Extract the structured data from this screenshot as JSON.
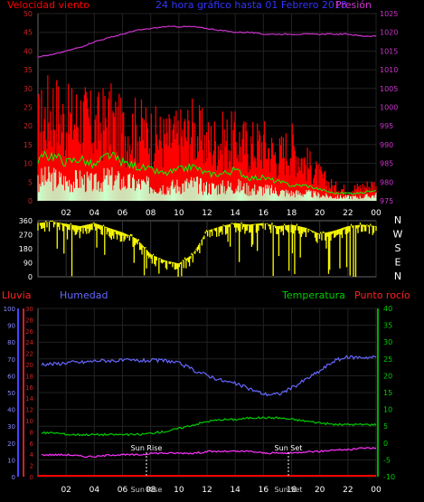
{
  "header": {
    "left": "Velocidad viento",
    "center": "24 hora gráfico hasta  01 Febrero 2018",
    "right": "Presión"
  },
  "mid_labels": [
    "Lluvia",
    "Humedad",
    "Temperatura",
    "Punto rocío"
  ],
  "compass": [
    "N",
    "W",
    "S",
    "E",
    "N"
  ],
  "sun": {
    "rise": "Sun Rise",
    "set": "Sun Set"
  },
  "colors": {
    "wind_gust": "#ff0000",
    "wind_avg": "#00ff00",
    "wind_min": "#ccffcc",
    "pressure": "#cc33cc",
    "direction": "#ffff00",
    "humidity": "#6666ff",
    "temperature": "#00cc00",
    "dewpoint": "#ff33ff",
    "rain": "#ff0000",
    "left_axis": "#cc2222",
    "right_axis_bottom": "#00cc00",
    "axis_text": "#ffffff"
  },
  "chart_data": [
    {
      "type": "area",
      "title": "24 hora gráfico hasta  01 Febrero 2018",
      "x_ticks": [
        "02",
        "04",
        "06",
        "08",
        "10",
        "12",
        "14",
        "16",
        "18",
        "20",
        "22",
        "00"
      ],
      "y_left": {
        "label": "Velocidad viento",
        "ticks": [
          0,
          5,
          10,
          15,
          20,
          25,
          30,
          35,
          40,
          45,
          50
        ],
        "lim": [
          0,
          50
        ]
      },
      "y_right": {
        "label": "Presión",
        "ticks": [
          975,
          980,
          985,
          990,
          995,
          1000,
          1005,
          1010,
          1015,
          1020,
          1025
        ],
        "lim": [
          975,
          1025
        ]
      },
      "x": [
        0,
        1,
        2,
        3,
        4,
        5,
        6,
        7,
        8,
        9,
        10,
        11,
        12,
        13,
        14,
        15,
        16,
        17,
        18,
        19,
        20,
        21,
        22,
        23,
        24
      ],
      "series": [
        {
          "name": "gust",
          "values": [
            27,
            34,
            28,
            31,
            26,
            30,
            25,
            26,
            24,
            22,
            23,
            26,
            21,
            22,
            22,
            20,
            21,
            16,
            20,
            14,
            9,
            5,
            4,
            5,
            6
          ]
        },
        {
          "name": "average",
          "values": [
            11,
            12,
            10,
            11,
            9,
            12,
            10,
            9,
            8,
            7,
            8,
            9,
            7,
            7,
            8,
            6,
            6,
            5,
            4,
            4,
            3,
            2,
            2,
            2,
            3
          ]
        },
        {
          "name": "pressure",
          "values": [
            1013.5,
            1014,
            1015,
            1016,
            1017.5,
            1018.5,
            1019.5,
            1020.5,
            1021,
            1021.5,
            1021.5,
            1021.5,
            1021,
            1020.5,
            1020,
            1020,
            1019.5,
            1019.5,
            1019.5,
            1019.5,
            1019.5,
            1019.5,
            1019.5,
            1019,
            1019
          ]
        }
      ]
    },
    {
      "type": "line",
      "title": "",
      "y_ticks": [
        0,
        90,
        180,
        270,
        360
      ],
      "y_right_labels": [
        "N",
        "W",
        "S",
        "E",
        "N"
      ],
      "x": [
        0,
        1,
        2,
        3,
        4,
        5,
        6,
        7,
        8,
        9,
        10,
        11,
        12,
        13,
        14,
        15,
        16,
        17,
        18,
        19,
        20,
        21,
        22,
        23,
        24
      ],
      "series": [
        {
          "name": "direction",
          "values": [
            320,
            330,
            315,
            300,
            320,
            290,
            260,
            220,
            120,
            80,
            60,
            120,
            270,
            300,
            320,
            310,
            320,
            300,
            310,
            290,
            250,
            270,
            300,
            310,
            300
          ]
        }
      ]
    },
    {
      "type": "line",
      "title": "",
      "x_ticks": [
        "02",
        "04",
        "06",
        "08",
        "10",
        "12",
        "14",
        "16",
        "18",
        "20",
        "22",
        "00"
      ],
      "y_left_rain": {
        "label": "Lluvia",
        "ticks": [
          0,
          2,
          4,
          6,
          8,
          10,
          12,
          14,
          16,
          18,
          20,
          22,
          24,
          26,
          28,
          30
        ]
      },
      "y_left_humidity": {
        "label": "Humedad",
        "ticks": [
          0,
          10,
          20,
          30,
          40,
          50,
          60,
          70,
          80,
          90,
          100
        ]
      },
      "y_right": {
        "label": "Temperatura",
        "ticks": [
          -10,
          -5,
          0,
          5,
          10,
          15,
          20,
          25,
          30,
          35,
          40
        ]
      },
      "annotations": [
        "Sun Rise",
        "Sun Set"
      ],
      "x": [
        0,
        1,
        2,
        3,
        4,
        5,
        6,
        7,
        8,
        9,
        10,
        11,
        12,
        13,
        14,
        15,
        16,
        17,
        18,
        19,
        20,
        21,
        22,
        23,
        24
      ],
      "series": [
        {
          "name": "humidity",
          "values": [
            67,
            67,
            68,
            68,
            69,
            69,
            69,
            69,
            69,
            69,
            67,
            63,
            60,
            57,
            55,
            52,
            49,
            49,
            53,
            58,
            63,
            69,
            71,
            71,
            71
          ]
        },
        {
          "name": "temperature",
          "values": [
            3,
            3,
            2.5,
            2.5,
            2.5,
            2.5,
            2.5,
            2.5,
            3,
            3.5,
            4.5,
            5.5,
            6.5,
            7,
            7,
            7.5,
            7.5,
            7.5,
            7,
            6.5,
            6,
            5.5,
            5.5,
            5.5,
            5.5
          ]
        },
        {
          "name": "dewpoint",
          "values": [
            -3.5,
            -3.5,
            -3.5,
            -4,
            -4,
            -3.5,
            -3.5,
            -3.5,
            -3,
            -3,
            -3,
            -3,
            -2.5,
            -2.5,
            -2.5,
            -2.5,
            -3,
            -3,
            -3,
            -2.5,
            -2.5,
            -2,
            -2,
            -1.5,
            -1.5
          ]
        },
        {
          "name": "rain",
          "values": [
            0,
            0,
            0,
            0,
            0,
            0,
            0,
            0,
            0,
            0,
            0,
            0,
            0,
            0,
            0,
            0,
            0,
            0,
            0,
            0,
            0,
            0,
            0,
            0,
            0
          ]
        }
      ]
    }
  ]
}
